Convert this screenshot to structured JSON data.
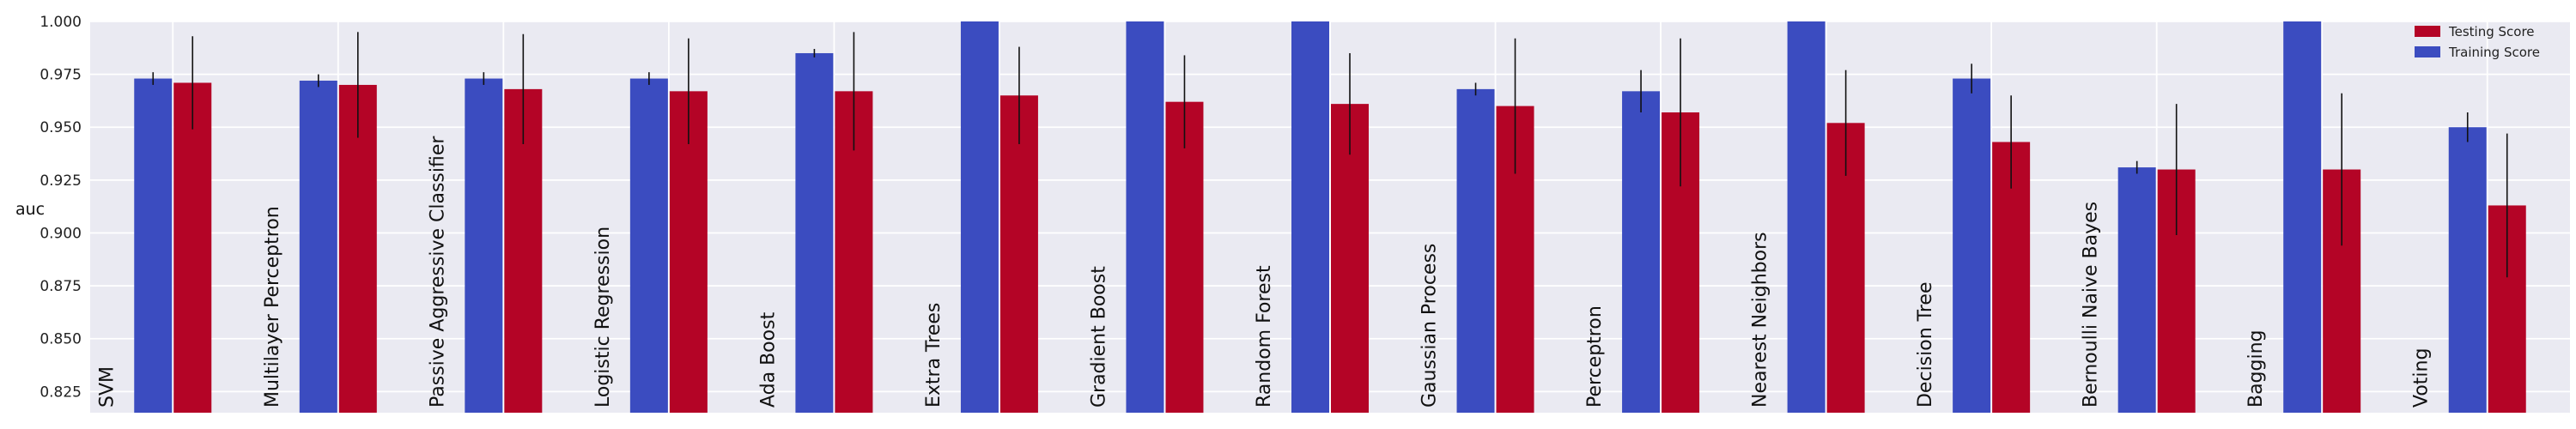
{
  "chart_data": {
    "type": "bar",
    "ylabel": "auc",
    "ylim": [
      0.815,
      1.0
    ],
    "yticks": [
      "0.825",
      "0.850",
      "0.875",
      "0.900",
      "0.925",
      "0.950",
      "0.975",
      "1.000"
    ],
    "grid": true,
    "legend_position": "top-right",
    "categories": [
      "SVM",
      "Multilayer Perceptron",
      "Passive Aggressive Classifier",
      "Logistic Regression",
      "Ada Boost",
      "Extra Trees",
      "Gradient Boost",
      "Random Forest",
      "Gaussian Process",
      "Perceptron",
      "Nearest Neighbors",
      "Decision Tree",
      "Bernoulli Naive Bayes",
      "Bagging",
      "Voting"
    ],
    "series": [
      {
        "name": "Training Score",
        "color": "#3b4cc0",
        "values": [
          0.973,
          0.972,
          0.973,
          0.973,
          0.985,
          1.0,
          1.0,
          1.0,
          0.968,
          0.967,
          1.0,
          0.973,
          0.931,
          1.0,
          0.95
        ],
        "errors": [
          0.003,
          0.003,
          0.003,
          0.003,
          0.002,
          0.0,
          0.0,
          0.0,
          0.003,
          0.01,
          0.0,
          0.007,
          0.003,
          0.0,
          0.007
        ]
      },
      {
        "name": "Testing Score",
        "color": "#b40426",
        "values": [
          0.971,
          0.97,
          0.968,
          0.967,
          0.967,
          0.965,
          0.962,
          0.961,
          0.96,
          0.957,
          0.952,
          0.943,
          0.93,
          0.93,
          0.913
        ],
        "errors": [
          0.022,
          0.025,
          0.026,
          0.025,
          0.028,
          0.023,
          0.022,
          0.024,
          0.032,
          0.035,
          0.025,
          0.022,
          0.031,
          0.036,
          0.034
        ]
      }
    ]
  }
}
